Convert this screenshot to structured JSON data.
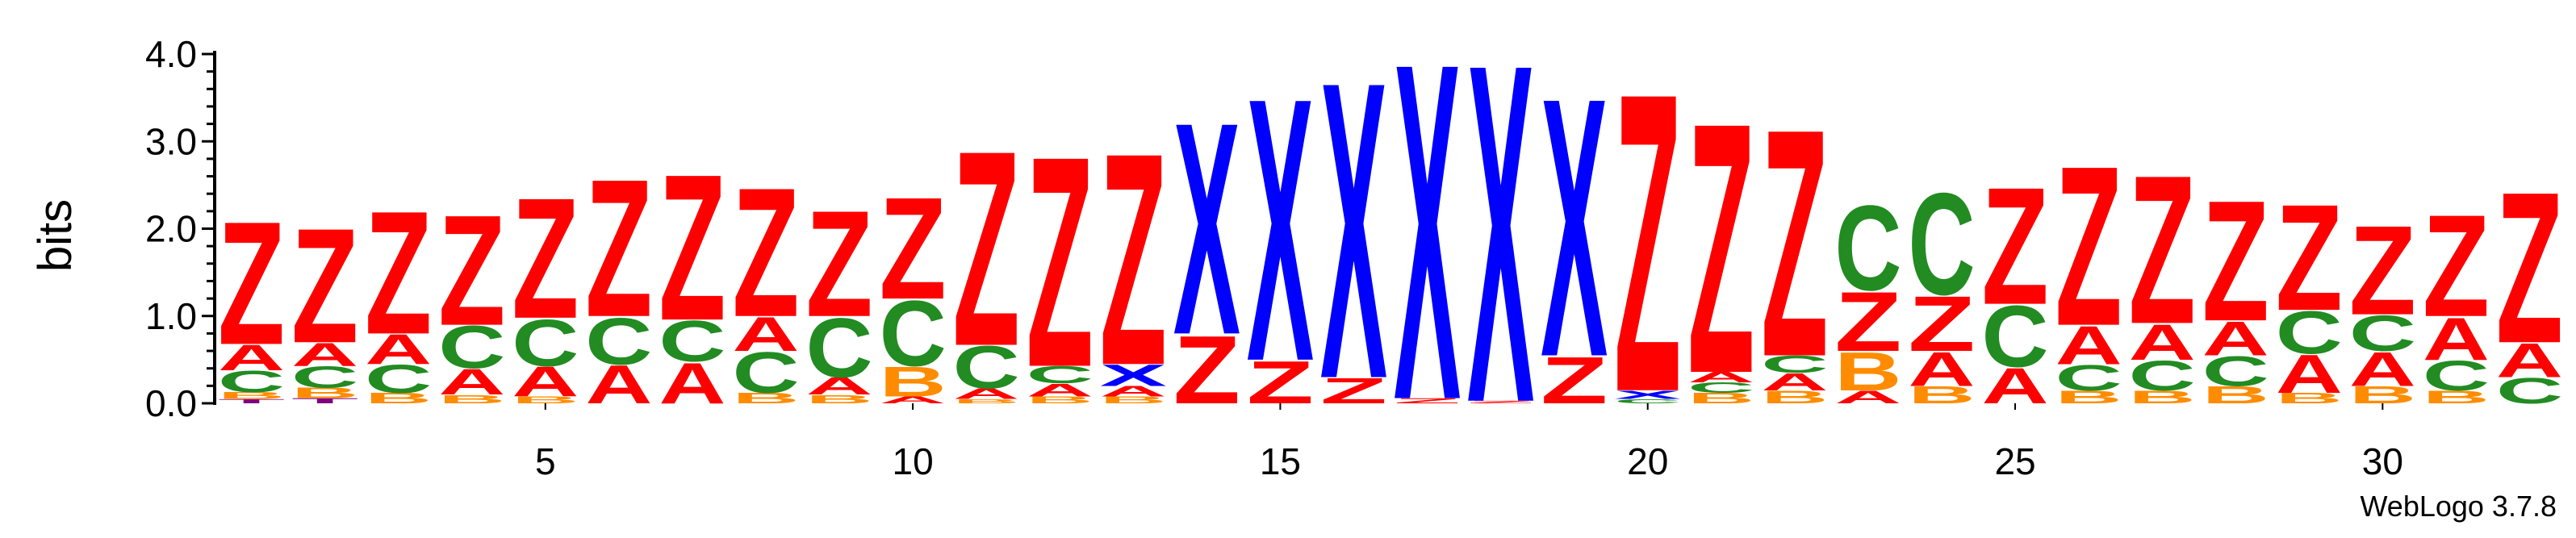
{
  "chart_data": {
    "type": "sequence-logo",
    "ylabel": "bits",
    "ylim": [
      0,
      4.0
    ],
    "yticks": [
      0.0,
      1.0,
      2.0,
      3.0,
      4.0
    ],
    "ytick_labels": [
      "0.0",
      "1.0",
      "2.0",
      "3.0",
      "4.0"
    ],
    "xlim": [
      0.5,
      32.5
    ],
    "xticks": [
      5,
      10,
      15,
      20,
      25,
      30
    ],
    "xtick_labels": [
      "5",
      "10",
      "15",
      "20",
      "25",
      "30"
    ],
    "credit": "WebLogo 3.7.8",
    "colors": {
      "Z": "#ff0000",
      "A": "#ff0000",
      "C": "#228b22",
      "B": "#ff8c00",
      "X": "#0000ff",
      "T": "#800080"
    },
    "stacks": [
      {
        "position": 1,
        "letters": [
          {
            "char": "T",
            "height": 0.05
          },
          {
            "char": "B",
            "height": 0.08
          },
          {
            "char": "C",
            "height": 0.25
          },
          {
            "char": "A",
            "height": 0.3
          },
          {
            "char": "Z",
            "height": 1.45
          }
        ]
      },
      {
        "position": 2,
        "letters": [
          {
            "char": "T",
            "height": 0.06
          },
          {
            "char": "B",
            "height": 0.12
          },
          {
            "char": "C",
            "height": 0.25
          },
          {
            "char": "A",
            "height": 0.27
          },
          {
            "char": "Z",
            "height": 1.35
          }
        ]
      },
      {
        "position": 3,
        "letters": [
          {
            "char": "B",
            "height": 0.12
          },
          {
            "char": "C",
            "height": 0.33
          },
          {
            "char": "A",
            "height": 0.35
          },
          {
            "char": "Z",
            "height": 1.45
          }
        ]
      },
      {
        "position": 4,
        "letters": [
          {
            "char": "B",
            "height": 0.1
          },
          {
            "char": "A",
            "height": 0.3
          },
          {
            "char": "C",
            "height": 0.5
          },
          {
            "char": "Z",
            "height": 1.3
          }
        ]
      },
      {
        "position": 5,
        "letters": [
          {
            "char": "B",
            "height": 0.08
          },
          {
            "char": "A",
            "height": 0.35
          },
          {
            "char": "C",
            "height": 0.55
          },
          {
            "char": "Z",
            "height": 1.42
          }
        ]
      },
      {
        "position": 6,
        "letters": [
          {
            "char": "A",
            "height": 0.45
          },
          {
            "char": "C",
            "height": 0.55
          },
          {
            "char": "Z",
            "height": 1.62
          }
        ]
      },
      {
        "position": 7,
        "letters": [
          {
            "char": "A",
            "height": 0.48
          },
          {
            "char": "C",
            "height": 0.48
          },
          {
            "char": "Z",
            "height": 1.72
          }
        ]
      },
      {
        "position": 8,
        "letters": [
          {
            "char": "B",
            "height": 0.12
          },
          {
            "char": "C",
            "height": 0.48
          },
          {
            "char": "A",
            "height": 0.4
          },
          {
            "char": "Z",
            "height": 1.52
          }
        ]
      },
      {
        "position": 9,
        "letters": [
          {
            "char": "B",
            "height": 0.1
          },
          {
            "char": "A",
            "height": 0.2
          },
          {
            "char": "C",
            "height": 0.7
          },
          {
            "char": "Z",
            "height": 1.25
          }
        ]
      },
      {
        "position": 10,
        "letters": [
          {
            "char": "A",
            "height": 0.08
          },
          {
            "char": "B",
            "height": 0.35
          },
          {
            "char": "C",
            "height": 0.77
          },
          {
            "char": "Z",
            "height": 1.2
          }
        ]
      },
      {
        "position": 11,
        "letters": [
          {
            "char": "B",
            "height": 0.05
          },
          {
            "char": "A",
            "height": 0.12
          },
          {
            "char": "C",
            "height": 0.5
          },
          {
            "char": "Z",
            "height": 2.3
          }
        ]
      },
      {
        "position": 12,
        "letters": [
          {
            "char": "B",
            "height": 0.08
          },
          {
            "char": "A",
            "height": 0.15
          },
          {
            "char": "C",
            "height": 0.2
          },
          {
            "char": "Z",
            "height": 2.48
          }
        ]
      },
      {
        "position": 13,
        "letters": [
          {
            "char": "B",
            "height": 0.08
          },
          {
            "char": "A",
            "height": 0.12
          },
          {
            "char": "X",
            "height": 0.25
          },
          {
            "char": "Z",
            "height": 2.5
          }
        ]
      },
      {
        "position": 14,
        "letters": [
          {
            "char": "Z",
            "height": 0.8
          },
          {
            "char": "X",
            "height": 2.5
          }
        ]
      },
      {
        "position": 15,
        "letters": [
          {
            "char": "Z",
            "height": 0.5
          },
          {
            "char": "X",
            "height": 3.1
          }
        ]
      },
      {
        "position": 16,
        "letters": [
          {
            "char": "Z",
            "height": 0.3
          },
          {
            "char": "X",
            "height": 3.5
          }
        ]
      },
      {
        "position": 17,
        "letters": [
          {
            "char": "Z",
            "height": 0.06
          },
          {
            "char": "X",
            "height": 3.97
          }
        ]
      },
      {
        "position": 18,
        "letters": [
          {
            "char": "Z",
            "height": 0.03
          },
          {
            "char": "X",
            "height": 3.99
          }
        ]
      },
      {
        "position": 19,
        "letters": [
          {
            "char": "Z",
            "height": 0.55
          },
          {
            "char": "X",
            "height": 3.05
          }
        ]
      },
      {
        "position": 20,
        "letters": [
          {
            "char": "C",
            "height": 0.05
          },
          {
            "char": "X",
            "height": 0.1
          },
          {
            "char": "Z",
            "height": 3.52
          }
        ]
      },
      {
        "position": 21,
        "letters": [
          {
            "char": "B",
            "height": 0.12
          },
          {
            "char": "C",
            "height": 0.12
          },
          {
            "char": "A",
            "height": 0.12
          },
          {
            "char": "Z",
            "height": 2.95
          }
        ]
      },
      {
        "position": 22,
        "letters": [
          {
            "char": "B",
            "height": 0.15
          },
          {
            "char": "A",
            "height": 0.2
          },
          {
            "char": "C",
            "height": 0.2
          },
          {
            "char": "Z",
            "height": 2.68
          }
        ]
      },
      {
        "position": 23,
        "letters": [
          {
            "char": "A",
            "height": 0.15
          },
          {
            "char": "B",
            "height": 0.45
          },
          {
            "char": "Z",
            "height": 0.7
          },
          {
            "char": "C",
            "height": 1.0
          }
        ]
      },
      {
        "position": 24,
        "letters": [
          {
            "char": "B",
            "height": 0.2
          },
          {
            "char": "A",
            "height": 0.4
          },
          {
            "char": "Z",
            "height": 0.65
          },
          {
            "char": "C",
            "height": 1.2
          }
        ]
      },
      {
        "position": 25,
        "letters": [
          {
            "char": "A",
            "height": 0.42
          },
          {
            "char": "C",
            "height": 0.72
          },
          {
            "char": "Z",
            "height": 1.38
          }
        ]
      },
      {
        "position": 26,
        "letters": [
          {
            "char": "B",
            "height": 0.15
          },
          {
            "char": "C",
            "height": 0.3
          },
          {
            "char": "A",
            "height": 0.45
          },
          {
            "char": "Z",
            "height": 1.88
          }
        ]
      },
      {
        "position": 27,
        "letters": [
          {
            "char": "B",
            "height": 0.15
          },
          {
            "char": "C",
            "height": 0.35
          },
          {
            "char": "A",
            "height": 0.42
          },
          {
            "char": "Z",
            "height": 1.75
          }
        ]
      },
      {
        "position": 28,
        "letters": [
          {
            "char": "B",
            "height": 0.2
          },
          {
            "char": "C",
            "height": 0.35
          },
          {
            "char": "A",
            "height": 0.4
          },
          {
            "char": "Z",
            "height": 1.42
          }
        ]
      },
      {
        "position": 29,
        "letters": [
          {
            "char": "B",
            "height": 0.12
          },
          {
            "char": "A",
            "height": 0.45
          },
          {
            "char": "C",
            "height": 0.5
          },
          {
            "char": "Z",
            "height": 1.25
          }
        ]
      },
      {
        "position": 30,
        "letters": [
          {
            "char": "B",
            "height": 0.2
          },
          {
            "char": "A",
            "height": 0.4
          },
          {
            "char": "C",
            "height": 0.42
          },
          {
            "char": "Z",
            "height": 1.05
          }
        ]
      },
      {
        "position": 31,
        "letters": [
          {
            "char": "B",
            "height": 0.15
          },
          {
            "char": "C",
            "height": 0.35
          },
          {
            "char": "A",
            "height": 0.5
          },
          {
            "char": "Z",
            "height": 1.2
          }
        ]
      },
      {
        "position": 32,
        "letters": [
          {
            "char": "C",
            "height": 0.3
          },
          {
            "char": "A",
            "height": 0.4
          },
          {
            "char": "Z",
            "height": 1.78
          }
        ]
      }
    ]
  }
}
